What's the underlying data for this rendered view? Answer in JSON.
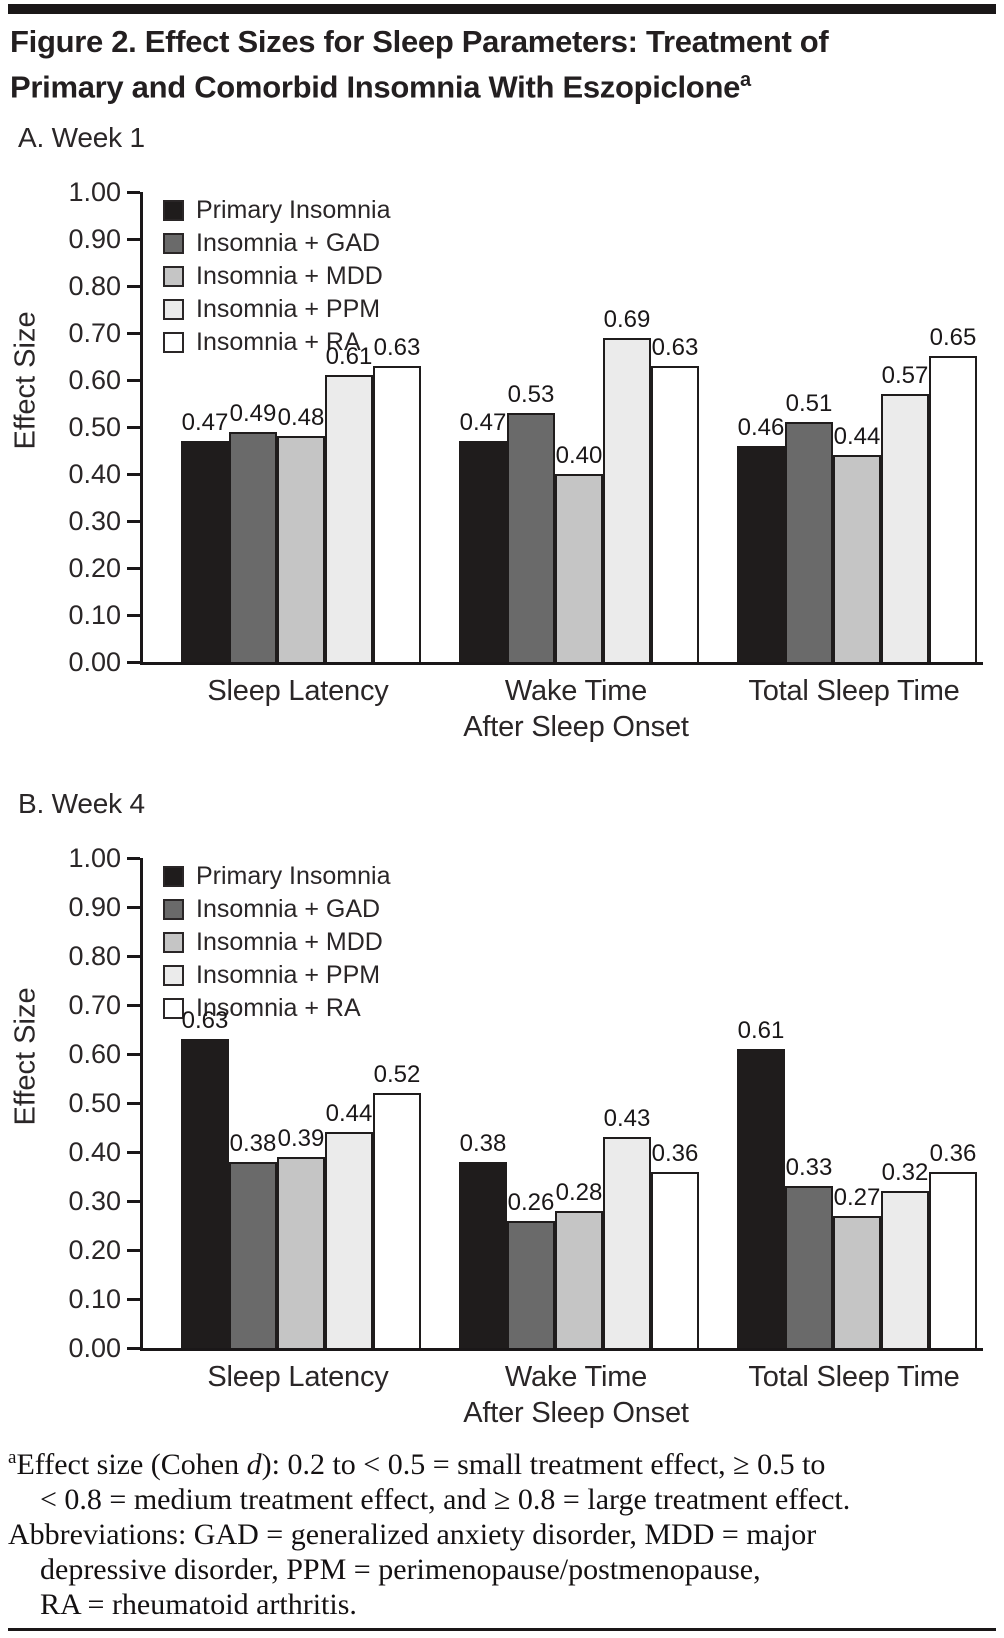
{
  "header": {
    "title_line1": "Figure 2. Effect Sizes for Sleep Parameters: Treatment of",
    "title_line2": "Primary and Comorbid Insomnia With Eszopiclone",
    "title_superscript": "a"
  },
  "chart_data": [
    {
      "type": "bar",
      "panel_label": "A. Week 1",
      "categories": [
        "Sleep Latency",
        "Wake Time\nAfter Sleep Onset",
        "Total Sleep Time"
      ],
      "series": [
        {
          "name": "Primary Insomnia",
          "color": "#1f1c1c",
          "values": [
            0.47,
            0.47,
            0.46
          ]
        },
        {
          "name": "Insomnia + GAD",
          "color": "#6a6a6a",
          "values": [
            0.49,
            0.53,
            0.51
          ]
        },
        {
          "name": "Insomnia + MDD",
          "color": "#c5c5c5",
          "values": [
            0.48,
            0.4,
            0.44
          ]
        },
        {
          "name": "Insomnia + PPM",
          "color": "#ebebeb",
          "values": [
            0.61,
            0.69,
            0.57
          ]
        },
        {
          "name": "Insomnia + RA",
          "color": "#ffffff",
          "values": [
            0.63,
            0.63,
            0.65
          ]
        }
      ],
      "ylabel": "Effect Size",
      "ylim": [
        0.0,
        1.0
      ],
      "ytick_step": 0.1,
      "grid": false,
      "legend_position": "upper-left",
      "value_labels": true,
      "value_label_format": "2-decimals"
    },
    {
      "type": "bar",
      "panel_label": "B. Week 4",
      "categories": [
        "Sleep Latency",
        "Wake Time\nAfter Sleep Onset",
        "Total Sleep Time"
      ],
      "series": [
        {
          "name": "Primary Insomnia",
          "color": "#1f1c1c",
          "values": [
            0.63,
            0.38,
            0.61
          ]
        },
        {
          "name": "Insomnia + GAD",
          "color": "#6a6a6a",
          "values": [
            0.38,
            0.26,
            0.33
          ]
        },
        {
          "name": "Insomnia + MDD",
          "color": "#c5c5c5",
          "values": [
            0.39,
            0.28,
            0.27
          ]
        },
        {
          "name": "Insomnia + PPM",
          "color": "#ebebeb",
          "values": [
            0.44,
            0.43,
            0.32
          ]
        },
        {
          "name": "Insomnia + RA",
          "color": "#ffffff",
          "values": [
            0.52,
            0.36,
            0.36
          ]
        }
      ],
      "ylabel": "Effect Size",
      "ylim": [
        0.0,
        1.0
      ],
      "ytick_step": 0.1,
      "grid": false,
      "legend_position": "upper-left",
      "value_labels": true,
      "value_label_format": "2-decimals"
    }
  ],
  "footnote": {
    "marker": "a",
    "line1_pre": "Effect size (Cohen ",
    "line1_italic": "d",
    "line1_post": "): 0.2 to < 0.5 = small treatment effect, ≥ 0.5 to",
    "line2": "< 0.8 = medium treatment effect, and ≥ 0.8 = large treatment effect.",
    "line3": "Abbreviations: GAD = generalized anxiety disorder, MDD = major",
    "line4": "depressive disorder, PPM = perimenopause/postmenopause,",
    "line5": "RA = rheumatoid arthritis."
  }
}
